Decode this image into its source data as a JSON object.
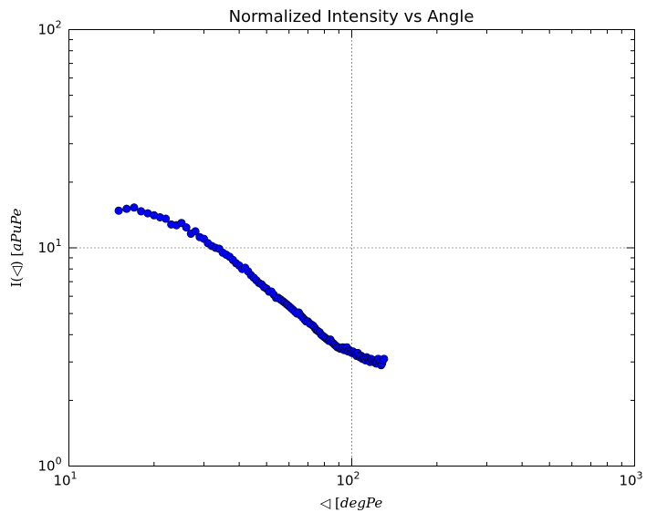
{
  "chart_data": {
    "type": "scatter",
    "title": "Normalized Intensity vs Angle",
    "xlabel": {
      "prefix": "◁ [",
      "italic": "degPe"
    },
    "ylabel": {
      "prefix": "I(◁) [",
      "italic": "aPuPe"
    },
    "x_scale": "log",
    "y_scale": "log",
    "xlim": [
      10,
      1000
    ],
    "ylim": [
      1,
      100
    ],
    "x_ticks": [
      {
        "base": "10",
        "exp": "1",
        "value": 10
      },
      {
        "base": "10",
        "exp": "2",
        "value": 100
      },
      {
        "base": "10",
        "exp": "3",
        "value": 1000
      }
    ],
    "y_ticks": [
      {
        "base": "10",
        "exp": "0",
        "value": 1
      },
      {
        "base": "10",
        "exp": "1",
        "value": 10
      },
      {
        "base": "10",
        "exp": "2",
        "value": 100
      }
    ],
    "grid": true,
    "marker_color": "#0000ff",
    "x": [
      15.0,
      16.0,
      17.0,
      18.0,
      19.0,
      20.0,
      21.0,
      22.0,
      23.0,
      24.0,
      25.0,
      26.0,
      27.0,
      28.0,
      29.0,
      30.0,
      31.0,
      32.0,
      33.0,
      34.0,
      35.0,
      36.0,
      37.0,
      38.0,
      39.0,
      40.0,
      41.0,
      42.0,
      43.0,
      44.0,
      45.0,
      46.0,
      47.0,
      48.0,
      49.0,
      50.0,
      51.0,
      52.0,
      53.0,
      54.0,
      55.0,
      56.0,
      57.0,
      58.0,
      59.0,
      60.0,
      61.0,
      62.0,
      63.0,
      64.0,
      65.0,
      66.0,
      67.0,
      68.0,
      69.0,
      70.0,
      71.0,
      72.0,
      73.0,
      74.0,
      75.0,
      76.0,
      77.0,
      78.0,
      79.0,
      80.0,
      81.0,
      82.0,
      83.0,
      84.0,
      85.0,
      86.0,
      87.0,
      88.0,
      89.0,
      90.0,
      91.0,
      92.0,
      93.0,
      94.0,
      95.0,
      96.0,
      97.0,
      98.0,
      99.0,
      100.0,
      101.0,
      102.0,
      103.0,
      104.0,
      105.0,
      106.0,
      107.0,
      108.0,
      109.0,
      110.0,
      111.0,
      112.0,
      113.0,
      114.0,
      115.0,
      116.0,
      117.0,
      118.0,
      119.0,
      120.0,
      121.0,
      122.0,
      123.0,
      124.0,
      125.0,
      126.0,
      127.0,
      128.0,
      129.0,
      130.0
    ],
    "y": [
      14.8,
      15.1,
      15.3,
      14.7,
      14.4,
      14.1,
      13.8,
      13.6,
      12.8,
      12.7,
      13.0,
      12.4,
      11.6,
      11.9,
      11.2,
      11.0,
      10.5,
      10.2,
      10.0,
      9.9,
      9.5,
      9.3,
      9.1,
      8.8,
      8.5,
      8.3,
      8.0,
      8.1,
      7.8,
      7.5,
      7.3,
      7.1,
      6.9,
      6.8,
      6.6,
      6.5,
      6.3,
      6.3,
      6.1,
      5.9,
      5.9,
      5.8,
      5.7,
      5.6,
      5.5,
      5.4,
      5.3,
      5.2,
      5.1,
      5.0,
      5.05,
      4.9,
      4.8,
      4.7,
      4.6,
      4.6,
      4.5,
      4.45,
      4.4,
      4.3,
      4.2,
      4.15,
      4.1,
      4.0,
      3.95,
      3.9,
      3.85,
      3.8,
      3.75,
      3.8,
      3.7,
      3.65,
      3.6,
      3.55,
      3.5,
      3.5,
      3.45,
      3.45,
      3.5,
      3.4,
      3.45,
      3.5,
      3.35,
      3.4,
      3.35,
      3.3,
      3.35,
      3.3,
      3.25,
      3.2,
      3.3,
      3.2,
      3.15,
      3.2,
      3.1,
      3.15,
      3.1,
      3.05,
      3.15,
      3.1,
      3.05,
      3.0,
      3.1,
      3.05,
      3.0,
      3.05,
      3.0,
      2.95,
      3.0,
      3.1,
      2.95,
      3.0,
      2.9,
      2.95,
      3.05,
      3.1
    ]
  }
}
